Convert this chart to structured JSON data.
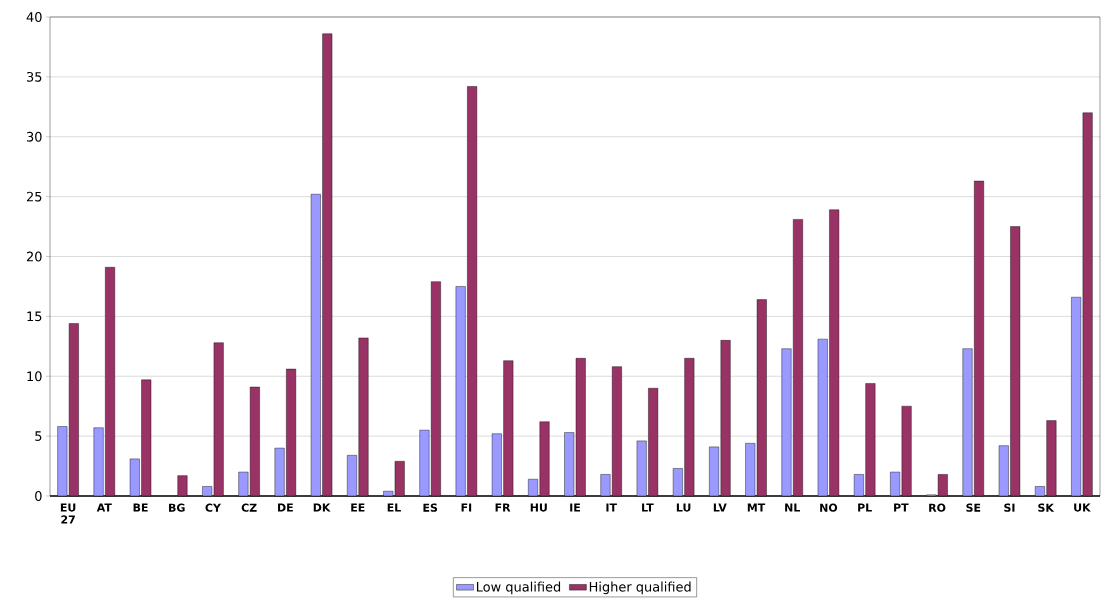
{
  "chart_data": {
    "type": "bar",
    "categories": [
      "EU 27",
      "AT",
      "BE",
      "BG",
      "CY",
      "CZ",
      "DE",
      "DK",
      "EE",
      "EL",
      "ES",
      "FI",
      "FR",
      "HU",
      "IE",
      "IT",
      "LT",
      "LU",
      "LV",
      "MT",
      "NL",
      "NO",
      "PL",
      "PT",
      "RO",
      "SE",
      "SI",
      "SK",
      "UK"
    ],
    "series": [
      {
        "name": "Low qualified",
        "color": "#9999ff",
        "values": [
          5.8,
          5.7,
          3.1,
          null,
          0.8,
          2.0,
          4.0,
          25.2,
          3.4,
          0.4,
          5.5,
          17.5,
          5.2,
          1.4,
          5.3,
          1.8,
          4.6,
          2.3,
          4.1,
          4.4,
          12.3,
          13.1,
          1.8,
          2.0,
          0.1,
          12.3,
          4.2,
          0.8,
          16.6
        ]
      },
      {
        "name": "Higher qualified",
        "color": "#993366",
        "values": [
          14.4,
          19.1,
          9.7,
          1.7,
          12.8,
          9.1,
          10.6,
          38.6,
          13.2,
          2.9,
          17.9,
          34.2,
          11.3,
          6.2,
          11.5,
          10.8,
          9.0,
          11.5,
          13.0,
          16.4,
          23.1,
          23.9,
          9.4,
          7.5,
          1.8,
          26.3,
          22.5,
          6.3,
          32.0
        ]
      }
    ],
    "ylim": [
      0,
      40
    ],
    "yticks": [
      0,
      5,
      10,
      15,
      20,
      25,
      30,
      35,
      40
    ],
    "grid": "y",
    "legend": "bottom"
  }
}
